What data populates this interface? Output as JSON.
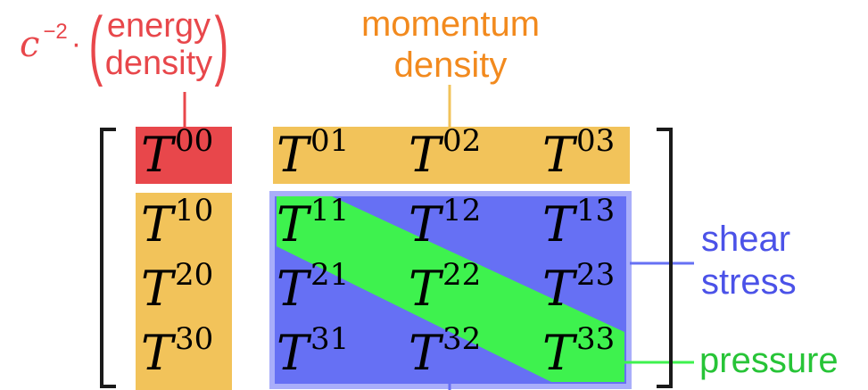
{
  "labels": {
    "energy_prefix": "c",
    "energy_exponent": "−2",
    "energy_dot": "·",
    "energy_line1": "energy",
    "energy_line2": "density",
    "momentum_line1": "momentum",
    "momentum_line2": "density",
    "shear_line1": "shear",
    "shear_line2": "stress",
    "pressure": "pressure"
  },
  "matrix": {
    "symbol": "T",
    "rows": [
      [
        "00",
        "01",
        "02",
        "03"
      ],
      [
        "10",
        "11",
        "12",
        "13"
      ],
      [
        "20",
        "21",
        "22",
        "23"
      ],
      [
        "30",
        "31",
        "32",
        "33"
      ]
    ]
  },
  "colors": {
    "energy": "#e8474b",
    "momentum": "#f2c35a",
    "momentum_text": "#f28a1e",
    "shear": "#6670f4",
    "shear_border": "#a9aefa",
    "shear_text": "#4b52e8",
    "pressure": "#3ef24e",
    "pressure_text": "#27c437"
  }
}
